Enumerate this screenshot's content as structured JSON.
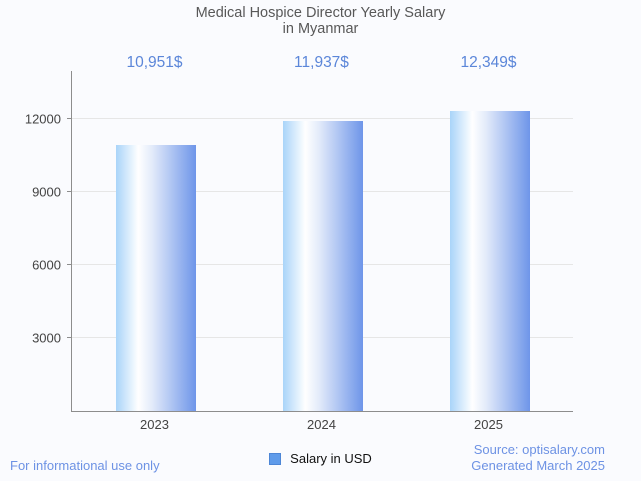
{
  "title": {
    "line1": "Medical Hospice Director Yearly Salary",
    "line2": "in Myanmar"
  },
  "chart_data": {
    "type": "bar",
    "title": "Medical Hospice Director Yearly Salary in Myanmar",
    "categories": [
      "2023",
      "2024",
      "2025"
    ],
    "values": [
      10951,
      11937,
      12349
    ],
    "value_labels": [
      "10,951$",
      "11,937$",
      "12,349$"
    ],
    "series_name": "Salary in USD",
    "xlabel": "",
    "ylabel": "",
    "ylim": [
      0,
      13973
    ],
    "yticks": [
      3000,
      6000,
      9000,
      12000
    ],
    "grid": true,
    "legend_position": "bottom",
    "bar_gradient": [
      "#a9d4f9",
      "#ffffff",
      "#6e95e9"
    ],
    "bar_legend_color": "#5f9bea",
    "value_label_color": "#5b86d9"
  },
  "legend": {
    "label": "Salary in USD"
  },
  "footer": {
    "left": "For informational use only",
    "source": "Source: optisalary.com",
    "generated": "Generated March 2025"
  }
}
